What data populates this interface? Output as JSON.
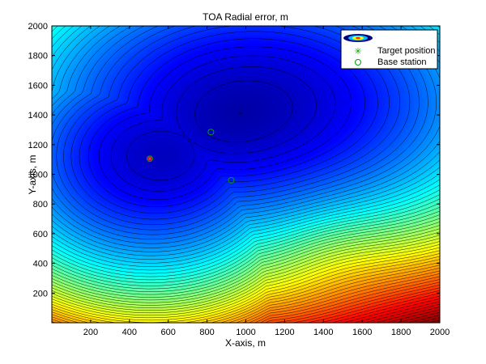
{
  "chart_data": {
    "type": "contour",
    "title": "TOA Radial error, m",
    "xlabel": "X-axis, m",
    "ylabel": "Y-axis, m",
    "xlim": [
      0,
      2000
    ],
    "ylim": [
      0,
      2000
    ],
    "xticks": [
      200,
      400,
      600,
      800,
      1000,
      1200,
      1400,
      1600,
      1800,
      2000
    ],
    "yticks": [
      200,
      400,
      600,
      800,
      1000,
      1200,
      1400,
      1600,
      1800,
      2000
    ],
    "colormap": "jet",
    "contour_line_color": "#000000",
    "grid": false,
    "legend_position": "top-right",
    "legend": [
      {
        "label": "",
        "marker": "contour-swatch"
      },
      {
        "label": "Target position",
        "marker": "*",
        "color": "#00a000"
      },
      {
        "label": "Base station",
        "marker": "o",
        "color": "#00a000"
      }
    ],
    "target_positions": [
      {
        "x": 505,
        "y": 1105
      }
    ],
    "base_stations": [
      {
        "x": 505,
        "y": 1105
      },
      {
        "x": 820,
        "y": 1285
      },
      {
        "x": 925,
        "y": 960
      }
    ],
    "error_field_minima": [
      {
        "x": 1050,
        "y": 1480
      },
      {
        "x": 510,
        "y": 1120
      }
    ],
    "error_field_local_feature": {
      "x": 1440,
      "y": 470
    }
  }
}
